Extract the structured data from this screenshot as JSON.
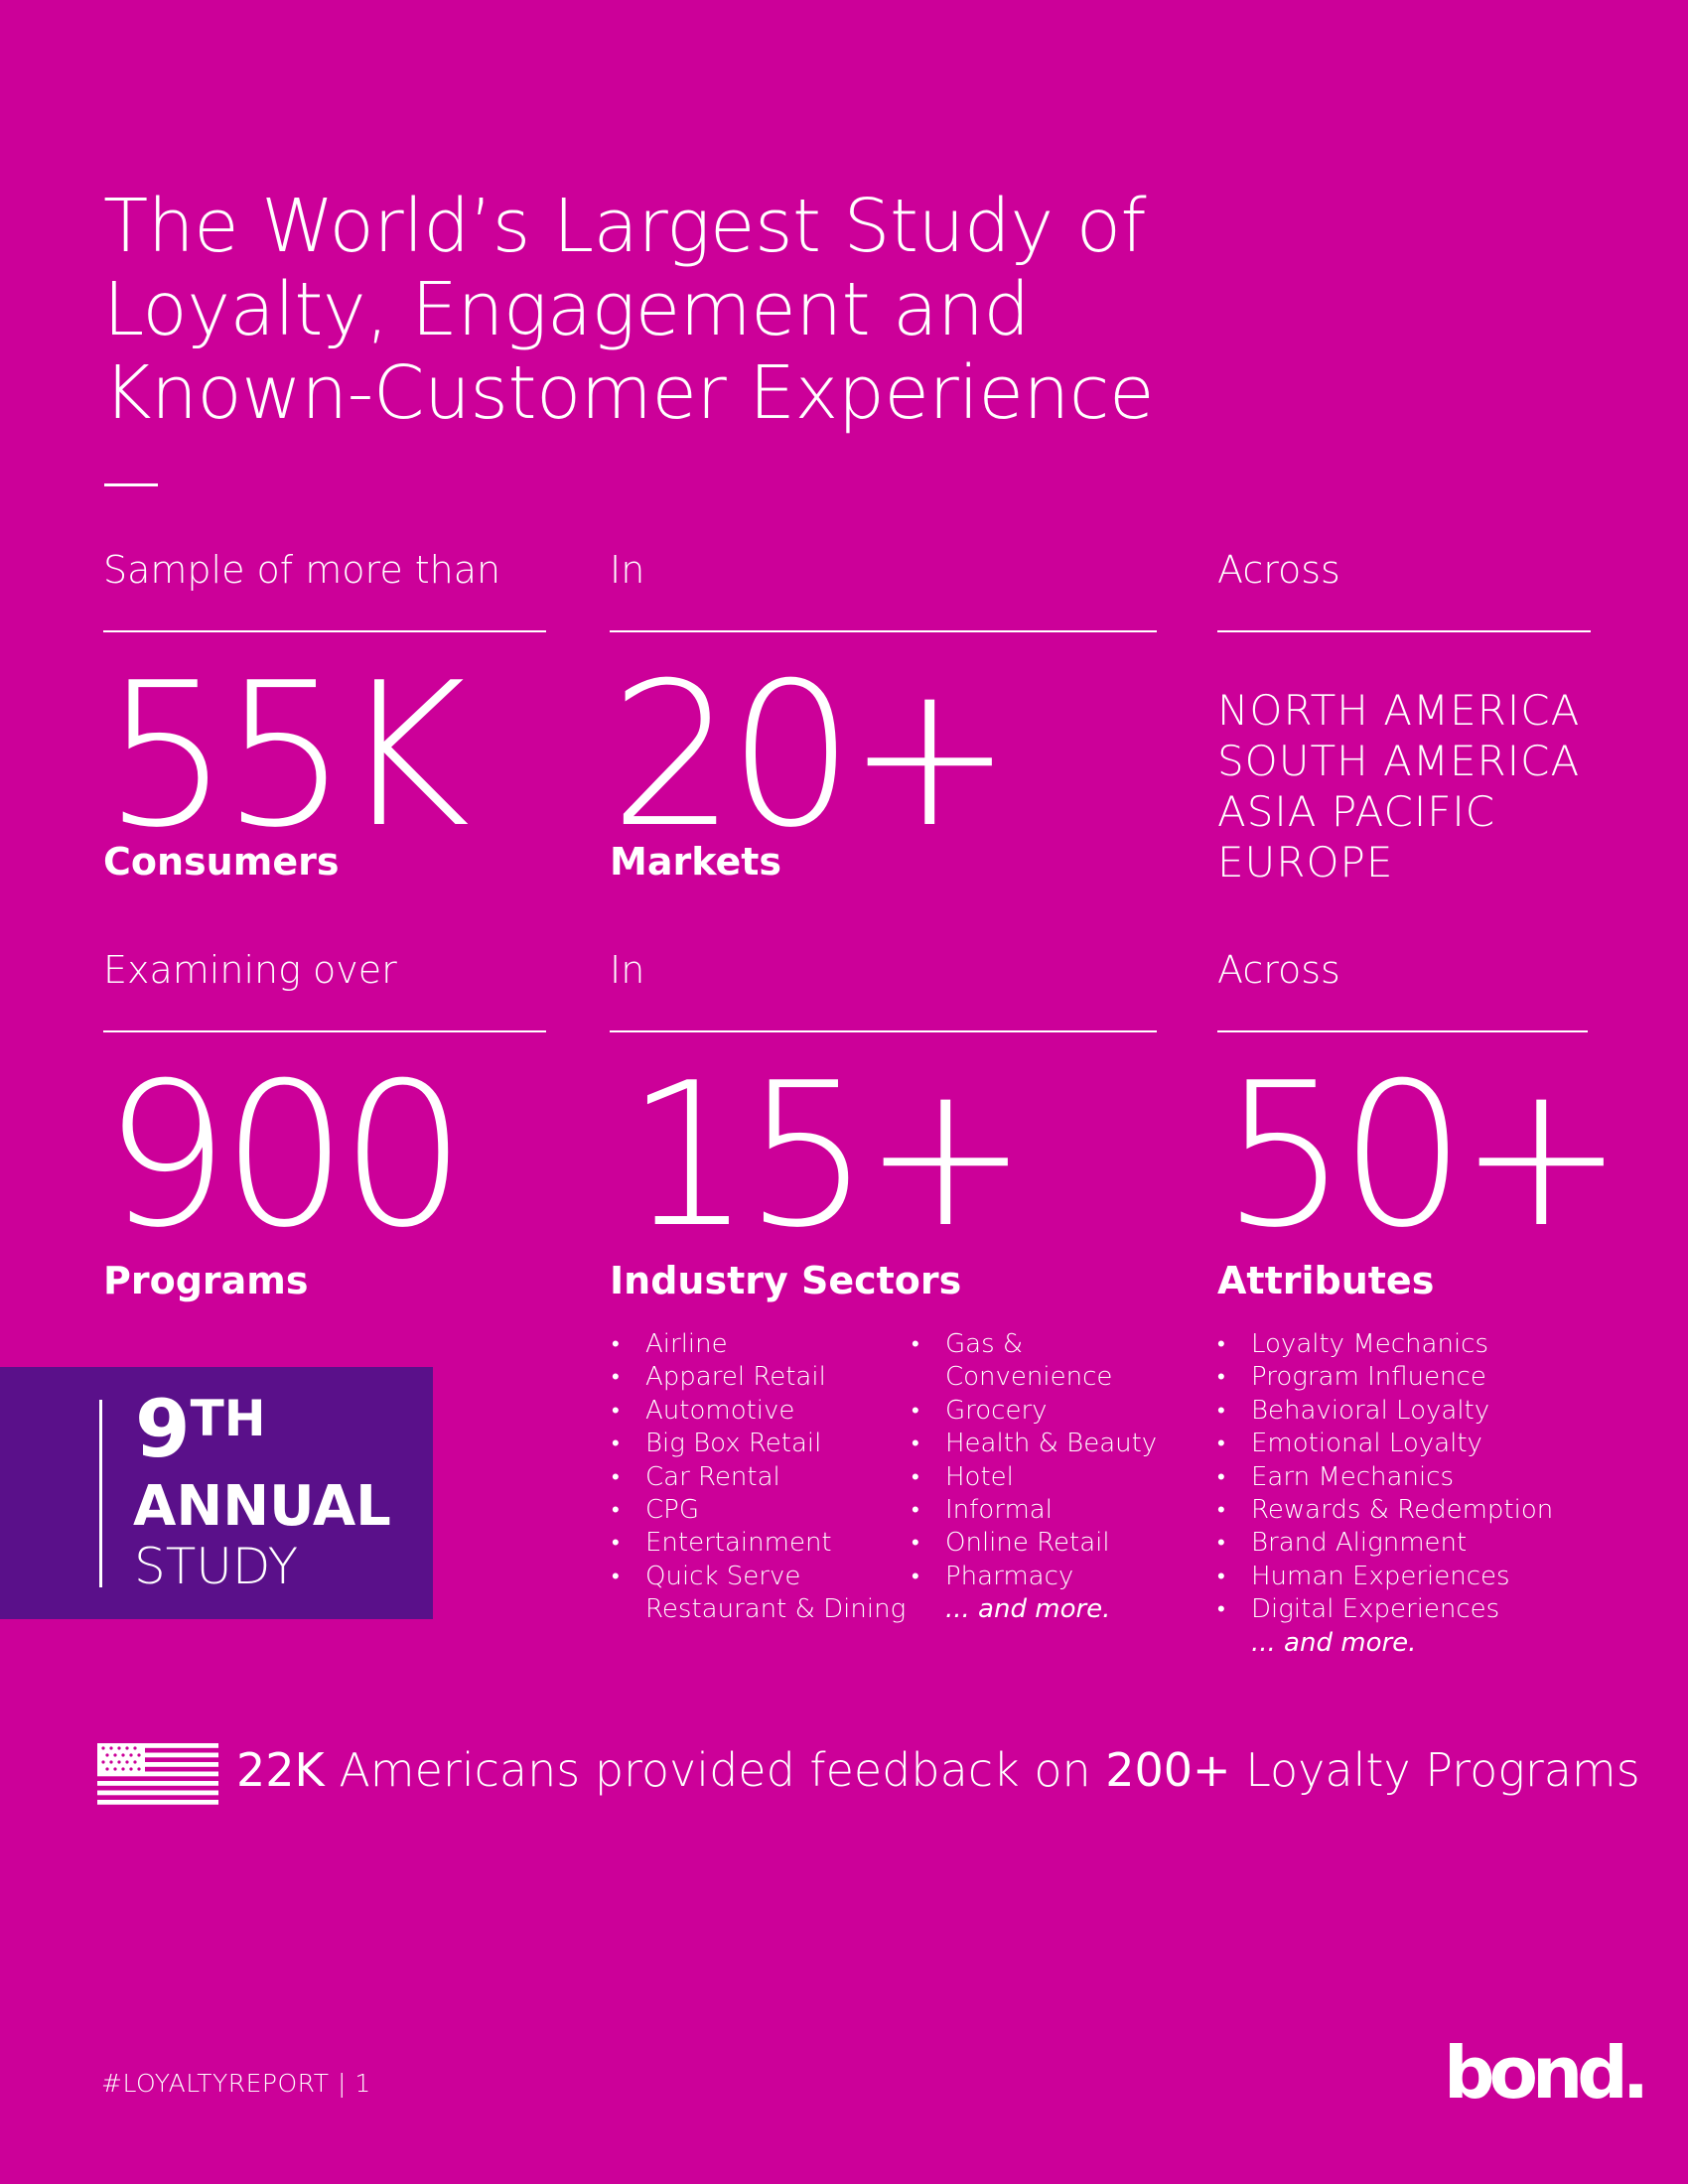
{
  "colors": {
    "background": "#CC0099",
    "badge": "#5A108A",
    "text": "#FFFFFF"
  },
  "title": {
    "lines": [
      "The World’s Largest Study of",
      "Loyalty, Engagement and",
      "Known-Customer Experience"
    ]
  },
  "row1": {
    "col1": {
      "label": "Sample of more than",
      "value": "55K",
      "unit": "Consumers"
    },
    "col2": {
      "label": "In",
      "value": "20+",
      "unit": "Markets"
    },
    "col3": {
      "label": "Across",
      "regions": [
        "NORTH AMERICA",
        "SOUTH AMERICA",
        "ASIA PACIFIC",
        "EUROPE"
      ]
    }
  },
  "row2": {
    "col1": {
      "label": "Examining over",
      "value": "900",
      "unit": "Programs"
    },
    "col2": {
      "label": "In",
      "value": "15+",
      "unit": "Industry Sectors",
      "list_a": [
        "Airline",
        "Apparel Retail",
        "Automotive",
        "Big Box Retail",
        "Car Rental",
        "CPG",
        "Entertainment",
        "Quick Serve",
        "Restaurant & Dining"
      ],
      "list_b": [
        "Gas &",
        "Convenience",
        "Grocery",
        "Health & Beauty",
        "Hotel",
        "Informal",
        "Online Retail",
        "Pharmacy"
      ],
      "more": "... and more."
    },
    "col3": {
      "label": "Across",
      "value": "50+",
      "unit": "Attributes",
      "list": [
        "Loyalty Mechanics",
        "Program Influence",
        "Behavioral Loyalty",
        "Emotional Loyalty",
        "Earn Mechanics",
        "Rewards & Redemption",
        "Brand Alignment",
        "Human Experiences",
        "Digital Experiences"
      ],
      "more": "... and more."
    }
  },
  "badge": {
    "number": "9",
    "suffix": "TH",
    "line2": "ANNUAL",
    "line3": "STUDY"
  },
  "banner": {
    "icon": "us-flag-icon",
    "count": "22K",
    "text1": " Americans provided feedback on ",
    "programs": "200+",
    "text2": " Loyalty Programs"
  },
  "footer": {
    "hashtag": "#LOYALTYREPORT",
    "separator": "|",
    "page": "1",
    "logo": "bond."
  }
}
